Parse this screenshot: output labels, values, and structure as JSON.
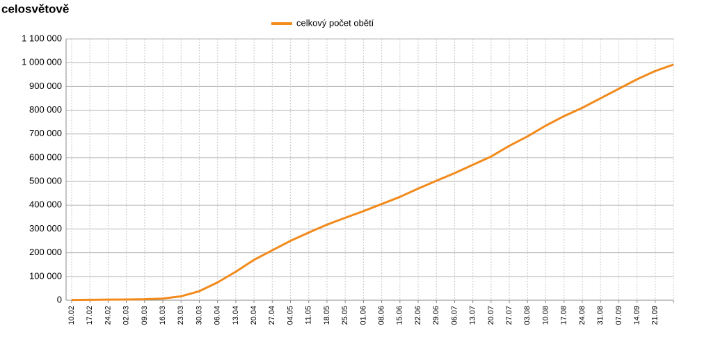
{
  "chart_data": {
    "type": "line",
    "title": "celosvětově",
    "categories": [
      "10.02",
      "17.02",
      "24.02",
      "02.03",
      "09.03",
      "16.03",
      "23.03",
      "30.03",
      "06.04",
      "13.04",
      "20.04",
      "27.04",
      "04.05",
      "11.05",
      "18.05",
      "25.05",
      "01.06",
      "08.06",
      "15.06",
      "22.06",
      "29.06",
      "06.07",
      "13.07",
      "20.07",
      "27.07",
      "03.08",
      "10.08",
      "17.08",
      "24.08",
      "31.08",
      "07.09",
      "14.09",
      "21.09",
      null
    ],
    "series": [
      {
        "name": "celkový počet obětí",
        "color": "#f28a1c",
        "values": [
          1000,
          1800,
          2700,
          3100,
          3900,
          7000,
          16500,
          38000,
          75000,
          120000,
          170000,
          210000,
          250000,
          285000,
          318000,
          347000,
          375000,
          405000,
          435000,
          470000,
          503000,
          535000,
          570000,
          605000,
          650000,
          690000,
          735000,
          775000,
          810000,
          850000,
          890000,
          930000,
          965000,
          992000
        ]
      }
    ],
    "ylim": [
      0,
      1100000
    ],
    "yticks": [
      0,
      {
        "value": 100000,
        "label": "100 000"
      },
      {
        "value": 200000,
        "label": "200 000"
      },
      {
        "value": 300000,
        "label": "300 000"
      },
      {
        "value": 400000,
        "label": "400 000"
      },
      {
        "value": 500000,
        "label": "500 000"
      },
      {
        "value": 600000,
        "label": "600 000"
      },
      {
        "value": 700000,
        "label": "700 000"
      },
      {
        "value": 800000,
        "label": "800 000"
      },
      {
        "value": 900000,
        "label": "900 000"
      },
      {
        "value": 1000000,
        "label": "1 000 000"
      },
      {
        "value": 1100000,
        "label": "1 100 000"
      }
    ],
    "grid": true,
    "legend": "top"
  }
}
